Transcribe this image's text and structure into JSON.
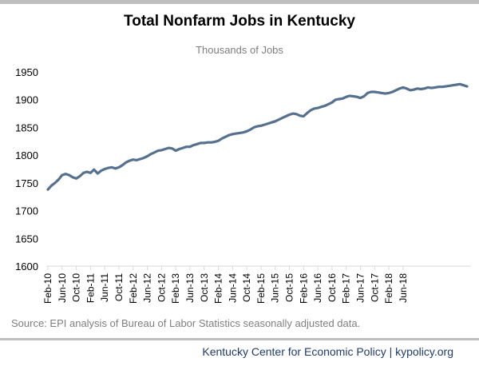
{
  "title": "Total Nonfarm Jobs in Kentucky",
  "subtitle": "Thousands of Jobs",
  "source": "Source: EPI analysis of Bureau of Labor Statistics seasonally adjusted data.",
  "credit": "Kentucky Center for Economic Policy | kypolicy.org",
  "colors": {
    "line": "#56708f",
    "rule": "#bfbfbf",
    "credit": "#1f3a6e"
  },
  "chart_data": {
    "type": "line",
    "title": "Total Nonfarm Jobs in Kentucky",
    "subtitle": "Thousands of Jobs",
    "ylim": [
      1600,
      1950
    ],
    "yticks": [
      1600,
      1650,
      1700,
      1750,
      1800,
      1850,
      1900,
      1950
    ],
    "grid": false,
    "start": "Feb-10",
    "xtick_labels": [
      "Feb-10",
      "Jun-10",
      "Oct-10",
      "Feb-11",
      "Jun-11",
      "Oct-11",
      "Feb-12",
      "Jun-12",
      "Oct-12",
      "Feb-13",
      "Jun-13",
      "Oct-13",
      "Feb-14",
      "Jun-14",
      "Oct-14",
      "Feb-15",
      "Jun-15",
      "Oct-15",
      "Feb-16",
      "Jun-16",
      "Oct-16",
      "Feb-17",
      "Jun-17",
      "Oct-17",
      "Feb-18",
      "Jun-18"
    ],
    "series": [
      {
        "values": [
          1738,
          1745,
          1750,
          1756,
          1764,
          1766,
          1764,
          1760,
          1758,
          1762,
          1768,
          1770,
          1768,
          1774,
          1767,
          1772,
          1775,
          1777,
          1778,
          1776,
          1778,
          1782,
          1787,
          1790,
          1792,
          1791,
          1793,
          1795,
          1798,
          1802,
          1805,
          1808,
          1809,
          1811,
          1813,
          1812,
          1808,
          1811,
          1813,
          1815,
          1815,
          1818,
          1820,
          1822,
          1822,
          1823,
          1823,
          1824,
          1826,
          1830,
          1833,
          1836,
          1838,
          1839,
          1840,
          1841,
          1843,
          1846,
          1850,
          1852,
          1853,
          1855,
          1857,
          1859,
          1861,
          1864,
          1867,
          1870,
          1873,
          1875,
          1874,
          1871,
          1870,
          1876,
          1881,
          1884,
          1885,
          1887,
          1889,
          1892,
          1895,
          1900,
          1901,
          1902,
          1905,
          1907,
          1906,
          1905,
          1903,
          1906,
          1912,
          1914,
          1914,
          1913,
          1912,
          1911,
          1912,
          1914,
          1917,
          1920,
          1922,
          1920,
          1917,
          1918,
          1920,
          1919,
          1920,
          1922,
          1921,
          1922,
          1923,
          1923,
          1924,
          1925,
          1926,
          1927,
          1928,
          1926,
          1924
        ]
      }
    ]
  }
}
